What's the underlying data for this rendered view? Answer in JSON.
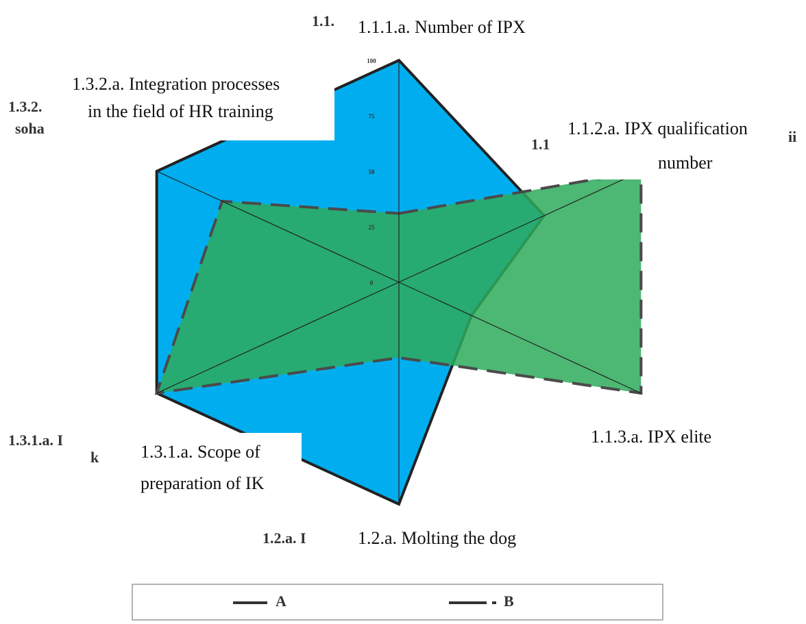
{
  "chart_data": {
    "type": "radar",
    "axes": [
      {
        "lines": [
          "1.1.1.a. Number of IPX"
        ]
      },
      {
        "lines": [
          "1.1.2.a. IPX qualification",
          "number"
        ]
      },
      {
        "lines": [
          "1.1.3.a. IPX elite"
        ]
      },
      {
        "lines": [
          "1.2.a. Molting the dog"
        ]
      },
      {
        "lines": [
          "1.3.1.a. Scope of",
          "preparation of IK"
        ]
      },
      {
        "lines": [
          "1.3.2.a. Integration processes",
          "in the field of HR training"
        ]
      }
    ],
    "fragments": [
      "1.1.",
      "1.3.2.",
      "soha",
      "1.1",
      "ii",
      "1.3.1.a. I",
      "k",
      "1.2.a. I"
    ],
    "series": [
      {
        "name": "A",
        "color": "#00aeef",
        "values": [
          100,
          60,
          30,
          100,
          100,
          100
        ]
      },
      {
        "name": "B",
        "color": "#2eaa5c",
        "values": [
          31,
          100,
          100,
          34,
          100,
          73
        ]
      }
    ],
    "ylim": [
      0,
      100
    ],
    "yticks": [
      0,
      25,
      50,
      75,
      100
    ]
  }
}
